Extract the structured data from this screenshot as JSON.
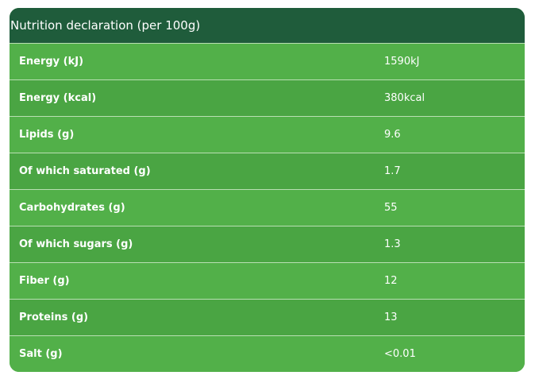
{
  "table": {
    "title": "Nutrition declaration (per 100g)",
    "rows": [
      [
        "Energy (kJ)",
        "1590kJ"
      ],
      [
        "Energy (kcal)",
        "380kcal"
      ],
      [
        "Lipids (g)",
        "9.6"
      ],
      [
        "Of which saturated (g)",
        "1.7"
      ],
      [
        "Carbohydrates (g)",
        "55"
      ],
      [
        "Of which sugars (g)",
        "1.3"
      ],
      [
        "Fiber (g)",
        "12"
      ],
      [
        "Proteins (g)",
        "13"
      ],
      [
        "Salt (g)",
        "<0.01"
      ]
    ]
  }
}
